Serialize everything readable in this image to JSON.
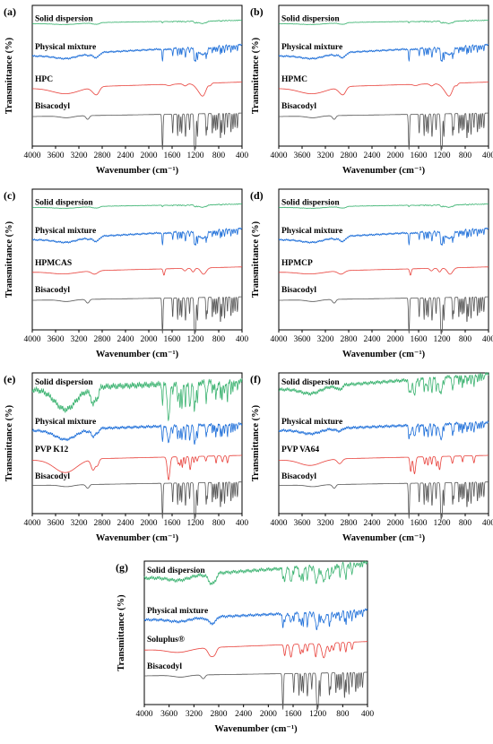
{
  "chart_data": [
    {
      "type": "line",
      "panel_label": "(a)",
      "xlabel": "Wavenumber (cm⁻¹)",
      "ylabel": "Transmittance (%)",
      "x_ticks": [
        4000,
        3600,
        3200,
        2800,
        2400,
        2000,
        1600,
        1200,
        800,
        400
      ],
      "xlim": [
        4000,
        400
      ],
      "x_reversed": true,
      "grid": false,
      "series": [
        {
          "name": "Solid dispersion",
          "color": "#3cb371",
          "profile": "sd"
        },
        {
          "name": "Physical mixture",
          "color": "#1e6fd9",
          "profile": "pm"
        },
        {
          "name": "HPC",
          "color": "#e8403a",
          "profile": "cel"
        },
        {
          "name": "Bisacodyl",
          "color": "#555555",
          "profile": "bis"
        }
      ]
    },
    {
      "type": "line",
      "panel_label": "(b)",
      "xlabel": "Wavenumber (cm⁻¹)",
      "ylabel": "Transmittance (%)",
      "x_ticks": [
        4000,
        3600,
        3200,
        2800,
        2400,
        2000,
        1600,
        1200,
        800,
        400
      ],
      "xlim": [
        4000,
        400
      ],
      "x_reversed": true,
      "grid": false,
      "series": [
        {
          "name": "Solid dispersion",
          "color": "#3cb371",
          "profile": "sd"
        },
        {
          "name": "Physical mixture",
          "color": "#1e6fd9",
          "profile": "pm"
        },
        {
          "name": "HPMC",
          "color": "#e8403a",
          "profile": "cel"
        },
        {
          "name": "Bisacodyl",
          "color": "#555555",
          "profile": "bis"
        }
      ]
    },
    {
      "type": "line",
      "panel_label": "(c)",
      "xlabel": "Wavenumber (cm⁻¹)",
      "ylabel": "Transmittance (%)",
      "x_ticks": [
        4000,
        3600,
        3200,
        2800,
        2400,
        2000,
        1600,
        1200,
        800,
        400
      ],
      "xlim": [
        4000,
        400
      ],
      "x_reversed": true,
      "grid": false,
      "series": [
        {
          "name": "Solid dispersion",
          "color": "#3cb371",
          "profile": "sd"
        },
        {
          "name": "Physical mixture",
          "color": "#1e6fd9",
          "profile": "pm"
        },
        {
          "name": "HPMCAS",
          "color": "#e8403a",
          "profile": "ester"
        },
        {
          "name": "Bisacodyl",
          "color": "#555555",
          "profile": "bis"
        }
      ]
    },
    {
      "type": "line",
      "panel_label": "(d)",
      "xlabel": "Wavenumber (cm⁻¹)",
      "ylabel": "Transmittance (%)",
      "x_ticks": [
        4000,
        3600,
        3200,
        2800,
        2400,
        2000,
        1600,
        1200,
        800,
        400
      ],
      "xlim": [
        4000,
        400
      ],
      "x_reversed": true,
      "grid": false,
      "series": [
        {
          "name": "Solid dispersion",
          "color": "#3cb371",
          "profile": "sd"
        },
        {
          "name": "Physical mixture",
          "color": "#1e6fd9",
          "profile": "pm"
        },
        {
          "name": "HPMCP",
          "color": "#e8403a",
          "profile": "ester"
        },
        {
          "name": "Bisacodyl",
          "color": "#555555",
          "profile": "bis"
        }
      ]
    },
    {
      "type": "line",
      "panel_label": "(e)",
      "xlabel": "Wavenumber (cm⁻¹)",
      "ylabel": "Transmittance (%)",
      "x_ticks": [
        4000,
        3600,
        3200,
        2800,
        2400,
        2000,
        1600,
        1200,
        800,
        400
      ],
      "xlim": [
        4000,
        400
      ],
      "x_reversed": true,
      "grid": false,
      "series": [
        {
          "name": "Solid dispersion",
          "color": "#3cb371",
          "profile": "pvp_sd"
        },
        {
          "name": "Physical mixture",
          "color": "#1e6fd9",
          "profile": "pvp_pm"
        },
        {
          "name": "PVP K12",
          "color": "#e8403a",
          "profile": "pvp"
        },
        {
          "name": "Bisacodyl",
          "color": "#555555",
          "profile": "bis"
        }
      ]
    },
    {
      "type": "line",
      "panel_label": "(f)",
      "xlabel": "Wavenumber (cm⁻¹)",
      "ylabel": "Transmittance (%)",
      "x_ticks": [
        4000,
        3600,
        3200,
        2800,
        2400,
        2000,
        1600,
        1200,
        800,
        400
      ],
      "xlim": [
        4000,
        400
      ],
      "x_reversed": true,
      "grid": false,
      "series": [
        {
          "name": "Solid dispersion",
          "color": "#3cb371",
          "profile": "va_sd"
        },
        {
          "name": "Physical mixture",
          "color": "#1e6fd9",
          "profile": "va_pm"
        },
        {
          "name": "PVP VA64",
          "color": "#e8403a",
          "profile": "va"
        },
        {
          "name": "Bisacodyl",
          "color": "#555555",
          "profile": "bis"
        }
      ]
    },
    {
      "type": "line",
      "panel_label": "(g)",
      "xlabel": "Wavenumber (cm⁻¹)",
      "ylabel": "Transmittance (%)",
      "x_ticks": [
        4000,
        3600,
        3200,
        2800,
        2400,
        2000,
        1600,
        1200,
        800,
        400
      ],
      "xlim": [
        4000,
        400
      ],
      "x_reversed": true,
      "grid": false,
      "series": [
        {
          "name": "Solid dispersion",
          "color": "#3cb371",
          "profile": "sol_sd"
        },
        {
          "name": "Physical mixture",
          "color": "#1e6fd9",
          "profile": "sol_pm"
        },
        {
          "name": "Soluplus®",
          "color": "#e8403a",
          "profile": "sol"
        },
        {
          "name": "Bisacodyl",
          "color": "#555555",
          "profile": "bis"
        }
      ]
    }
  ]
}
